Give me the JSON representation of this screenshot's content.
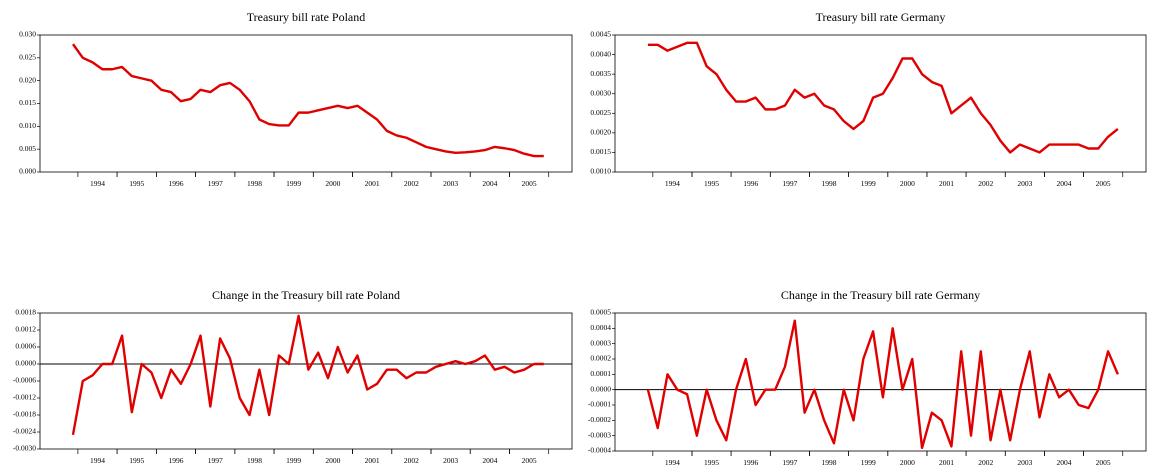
{
  "chart_data": [
    {
      "type": "line",
      "title": "Treasury bill rate Poland",
      "categories": [
        null,
        null,
        "1994",
        null,
        null,
        null,
        "1995",
        null,
        null,
        null,
        "1996",
        null,
        null,
        null,
        "1997",
        null,
        null,
        null,
        "1998",
        null,
        null,
        null,
        "1999",
        null,
        null,
        null,
        "2000",
        null,
        null,
        null,
        "2001",
        null,
        null,
        null,
        "2002",
        null,
        null,
        null,
        "2003",
        null,
        null,
        null,
        "2004",
        null,
        null,
        null,
        "2005",
        null,
        null
      ],
      "series": [
        {
          "name": null,
          "color": "#e00000",
          "values": [
            0.028,
            0.025,
            0.024,
            0.0225,
            0.0225,
            0.023,
            0.021,
            0.0205,
            0.02,
            0.018,
            0.0175,
            0.0155,
            0.016,
            0.018,
            0.0175,
            0.019,
            0.0195,
            0.018,
            0.0155,
            0.0115,
            0.0105,
            0.0102,
            0.0102,
            0.013,
            0.013,
            0.0135,
            0.014,
            0.0145,
            0.014,
            0.0145,
            0.013,
            0.0115,
            0.009,
            0.008,
            0.0075,
            0.0065,
            0.0055,
            0.005,
            0.0045,
            0.0042,
            0.0043,
            0.0045,
            0.0048,
            0.0055,
            0.0052,
            0.0048,
            0.004,
            0.0035,
            0.0035
          ]
        }
      ],
      "ylim": [
        0,
        0.03
      ],
      "yticks": [
        {
          "value": 0,
          "label": "0.000"
        },
        0.005,
        {
          "value": 0.01,
          "label": "0.010"
        },
        0.015,
        {
          "value": 0.02,
          "label": "0.020"
        },
        0.025,
        {
          "value": 0.03,
          "label": "0.030"
        }
      ]
    },
    {
      "type": "line",
      "title": "Treasury bill rate Germany",
      "categories": [
        null,
        null,
        "1994",
        null,
        null,
        null,
        "1995",
        null,
        null,
        null,
        "1996",
        null,
        null,
        null,
        "1997",
        null,
        null,
        null,
        "1998",
        null,
        null,
        null,
        "1999",
        null,
        null,
        null,
        "2000",
        null,
        null,
        null,
        "2001",
        null,
        null,
        null,
        "2002",
        null,
        null,
        null,
        "2003",
        null,
        null,
        null,
        "2004",
        null,
        null,
        null,
        "2005",
        null,
        null
      ],
      "series": [
        {
          "name": null,
          "color": "#e00000",
          "values": [
            0.00425,
            0.00425,
            0.0041,
            0.0042,
            0.0043,
            0.0043,
            0.0037,
            0.0035,
            0.0031,
            0.0028,
            0.0028,
            0.0029,
            0.0026,
            0.0026,
            0.0027,
            0.0031,
            0.0029,
            0.003,
            0.0027,
            0.0026,
            0.0023,
            0.0021,
            0.0023,
            0.0029,
            0.003,
            0.0034,
            0.0039,
            0.0039,
            0.0035,
            0.0033,
            0.0032,
            0.0025,
            0.0027,
            0.0029,
            0.0025,
            0.0022,
            0.0018,
            0.0015,
            0.0017,
            0.0016,
            0.0015,
            0.0017,
            0.0017,
            0.0017,
            0.0017,
            0.0016,
            0.0016,
            0.0019,
            0.0021
          ]
        }
      ],
      "ylim": [
        0.001,
        0.0045
      ],
      "yticks": [
        {
          "value": 0.001,
          "label": "0.0010"
        },
        0.0015,
        {
          "value": 0.002,
          "label": "0.0020"
        },
        0.0025,
        {
          "value": 0.003,
          "label": "0.0030"
        },
        0.0035,
        {
          "value": 0.004,
          "label": "0.0040"
        },
        0.0045
      ]
    },
    {
      "type": "line",
      "title": "Change in the Treasury bill rate Poland",
      "categories": [
        null,
        null,
        "1994",
        null,
        null,
        null,
        "1995",
        null,
        null,
        null,
        "1996",
        null,
        null,
        null,
        "1997",
        null,
        null,
        null,
        "1998",
        null,
        null,
        null,
        "1999",
        null,
        null,
        null,
        "2000",
        null,
        null,
        null,
        "2001",
        null,
        null,
        null,
        "2002",
        null,
        null,
        null,
        "2003",
        null,
        null,
        null,
        "2004",
        null,
        null,
        null,
        "2005",
        null,
        null
      ],
      "series": [
        {
          "name": null,
          "color": "#e00000",
          "values": [
            -0.0025,
            -0.0006,
            -0.0004,
            0,
            0,
            0.001,
            -0.0017,
            0,
            -0.0003,
            -0.0012,
            -0.0002,
            -0.0007,
            0,
            0.001,
            -0.0015,
            0.0009,
            0.0002,
            -0.0012,
            -0.0018,
            -0.0002,
            -0.0018,
            0.0003,
            0,
            0.0017,
            -0.0002,
            0.0004,
            -0.0005,
            0.0006,
            -0.0003,
            0.0003,
            -0.0009,
            -0.0007,
            -0.0002,
            -0.0002,
            -0.0005,
            -0.0003,
            -0.0003,
            -0.0001,
            0,
            0.0001,
            0,
            0.0001,
            0.0003,
            -0.0002,
            -0.0001,
            -0.0003,
            -0.0002,
            0,
            0
          ]
        }
      ],
      "ylim": [
        -0.003,
        0.0018
      ],
      "yticks": [
        {
          "value": -0.003,
          "label": "-0.0030"
        },
        -0.0024,
        -0.0018,
        -0.0012,
        -0.0006,
        {
          "value": 0,
          "label": "0.0000"
        },
        0.0006,
        0.0012,
        0.0018
      ]
    },
    {
      "type": "line",
      "title": "Change in the Treasury bill rate Germany",
      "categories": [
        null,
        null,
        "1994",
        null,
        null,
        null,
        "1995",
        null,
        null,
        null,
        "1996",
        null,
        null,
        null,
        "1997",
        null,
        null,
        null,
        "1998",
        null,
        null,
        null,
        "1999",
        null,
        null,
        null,
        "2000",
        null,
        null,
        null,
        "2001",
        null,
        null,
        null,
        "2002",
        null,
        null,
        null,
        "2003",
        null,
        null,
        null,
        "2004",
        null,
        null,
        null,
        "2005",
        null,
        null
      ],
      "series": [
        {
          "name": null,
          "color": "#e00000",
          "values": [
            0,
            -0.00025,
            0.0001,
            0,
            -3e-05,
            -0.0003,
            0,
            -0.0002,
            -0.00033,
            0,
            0.0002,
            -0.0001,
            0,
            0,
            0.00015,
            0.00045,
            -0.00015,
            0,
            -0.0002,
            -0.00035,
            0,
            -0.0002,
            0.0002,
            0.00038,
            -5e-05,
            0.0004,
            0,
            0.0002,
            -0.00038,
            -0.00015,
            -0.0002,
            -0.00037,
            0.00025,
            -0.0003,
            0.00025,
            -0.00033,
            0,
            -0.00033,
            0,
            0.00025,
            -0.00018,
            0.0001,
            -5e-05,
            0,
            -0.0001,
            -0.00012,
            0,
            0.00025,
            0.0001
          ]
        }
      ],
      "ylim": [
        -0.0004,
        0.0005
      ],
      "yticks": [
        -0.0004,
        -0.0003,
        -0.0002,
        -0.0001,
        {
          "value": 0,
          "label": "0.0000"
        },
        0.0001,
        0.0002,
        0.0003,
        0.0004,
        0.0005
      ]
    }
  ]
}
